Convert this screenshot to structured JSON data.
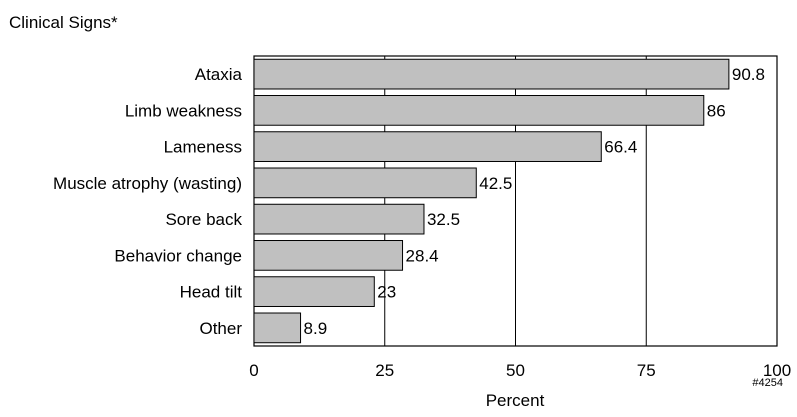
{
  "chart_data": {
    "type": "bar",
    "orientation": "horizontal",
    "title": "Clinical Signs*",
    "xlabel": "Percent",
    "ylabel": "",
    "categories": [
      "Ataxia",
      "Limb weakness",
      "Lameness",
      "Muscle atrophy (wasting)",
      "Sore back",
      "Behavior change",
      "Head tilt",
      "Other"
    ],
    "values": [
      90.8,
      86,
      66.4,
      42.5,
      32.5,
      28.4,
      23,
      8.9
    ],
    "value_labels": [
      "90.8",
      "86",
      "66.4",
      "42.5",
      "32.5",
      "28.4",
      "23",
      "8.9"
    ],
    "xlim": [
      0,
      100
    ],
    "xticks": [
      0,
      25,
      50,
      75,
      100
    ],
    "xtick_labels": [
      "0",
      "25",
      "50",
      "75",
      "100"
    ],
    "grid": "vertical",
    "note": "#4254",
    "colors": {
      "bar_fill": "#c0c0c0",
      "bar_stroke": "#000000",
      "grid": "#000000",
      "background": "#ffffff"
    }
  }
}
